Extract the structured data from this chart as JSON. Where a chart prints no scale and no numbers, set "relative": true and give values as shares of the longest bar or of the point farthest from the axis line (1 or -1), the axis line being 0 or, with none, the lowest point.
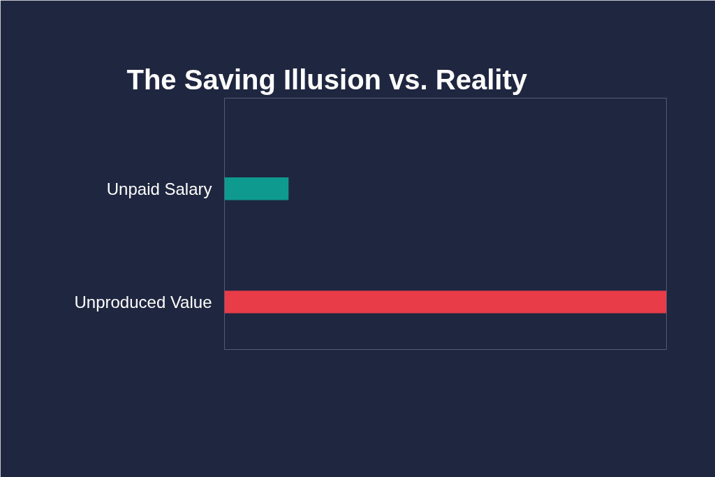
{
  "chart_data": {
    "type": "bar",
    "orientation": "horizontal",
    "relative": true,
    "title": "The Saving Illusion vs. Reality",
    "categories": [
      "Unpaid Salary",
      "Unproduced Value"
    ],
    "values": [
      0.145,
      1
    ],
    "colors": [
      "#0e9a8e",
      "#e83c48"
    ]
  }
}
